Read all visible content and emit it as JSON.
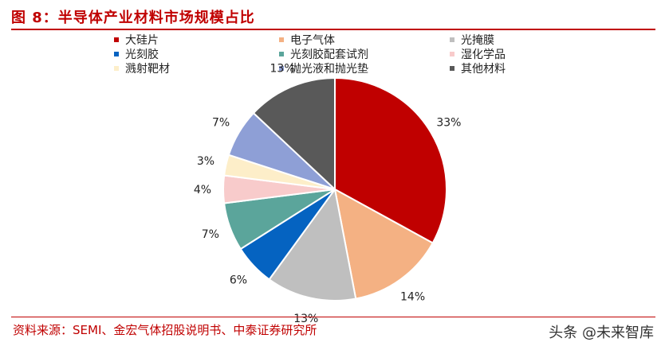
{
  "title": "图 8：半导体产业材料市场规模占比",
  "source": "资料来源：SEMI、金宏气体招股说明书、中泰证券研究所",
  "watermark": "头条 @未来智库",
  "chart_data": {
    "type": "pie",
    "title": "",
    "legend_position": "top",
    "categories": [
      "大硅片",
      "电子气体",
      "光掩膜",
      "光刻胶",
      "光刻胶配套试剂",
      "湿化学品",
      "溅射靶材",
      "抛光液和抛光垫",
      "其他材料"
    ],
    "values": [
      33,
      14,
      13,
      6,
      7,
      4,
      3,
      7,
      13
    ],
    "labels": [
      "33%",
      "14%",
      "13%",
      "6%",
      "7%",
      "4%",
      "3%",
      "7%",
      "13%"
    ],
    "colors": [
      "#c00000",
      "#f4b183",
      "#bfbfbf",
      "#0563c1",
      "#5ba59b",
      "#f8cbcb",
      "#fdeec9",
      "#8e9fd6",
      "#595959"
    ]
  }
}
